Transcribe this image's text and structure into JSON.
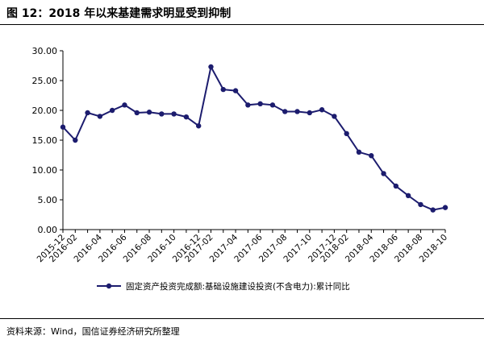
{
  "figure": {
    "title": "图 12：2018 年以来基建需求明显受到抑制",
    "source": "资料来源：Wind，国信证券经济研究所整理"
  },
  "chart_data": {
    "type": "line",
    "x": [
      "2015-12",
      "2016-02",
      "2016-03",
      "2016-04",
      "2016-05",
      "2016-06",
      "2016-07",
      "2016-08",
      "2016-09",
      "2016-10",
      "2016-11",
      "2016-12",
      "2017-02",
      "2017-03",
      "2017-04",
      "2017-05",
      "2017-06",
      "2017-07",
      "2017-08",
      "2017-09",
      "2017-10",
      "2017-11",
      "2017-12",
      "2018-02",
      "2018-03",
      "2018-04",
      "2018-05",
      "2018-06",
      "2018-07",
      "2018-08",
      "2018-09",
      "2018-10"
    ],
    "x_tick_labels": [
      "2015-12",
      "2016-02",
      "2016-04",
      "2016-06",
      "2016-08",
      "2016-10",
      "2016-12",
      "2017-02",
      "2017-04",
      "2017-06",
      "2017-08",
      "2017-10",
      "2017-12",
      "2018-02",
      "2018-04",
      "2018-06",
      "2018-08",
      "2018-10"
    ],
    "series": [
      {
        "name": "固定资产投资完成额:基础设施建设投资(不含电力):累计同比",
        "values": [
          17.2,
          15.0,
          19.6,
          19.0,
          20.0,
          20.9,
          19.6,
          19.7,
          19.4,
          19.4,
          18.9,
          17.4,
          27.3,
          23.5,
          23.3,
          20.9,
          21.1,
          20.9,
          19.8,
          19.8,
          19.6,
          20.1,
          19.0,
          16.1,
          13.0,
          12.4,
          9.4,
          7.3,
          5.7,
          4.2,
          3.3,
          3.7
        ]
      }
    ],
    "y_tick_labels": [
      "0.00",
      "5.00",
      "10.00",
      "15.00",
      "20.00",
      "25.00",
      "30.00"
    ],
    "ylim": [
      0,
      30
    ],
    "color": "#1c1c6e",
    "grid": false,
    "legend_position": "bottom",
    "xlabel": "",
    "ylabel": ""
  }
}
